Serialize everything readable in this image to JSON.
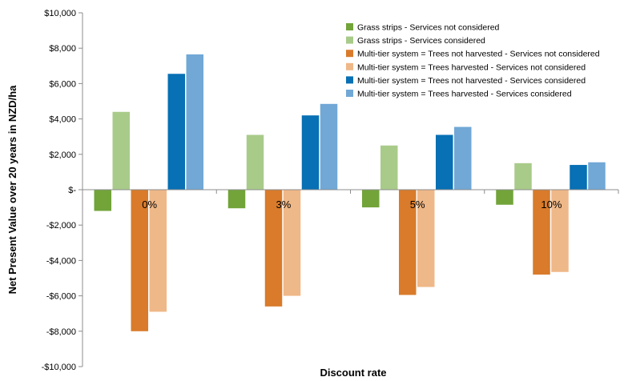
{
  "chart_data": {
    "type": "bar",
    "xlabel": "Discount rate",
    "ylabel": "Net Present Value over 20 years in NZD/ha",
    "ylim": [
      -10000,
      10000
    ],
    "yticks": [
      10000,
      8000,
      6000,
      4000,
      2000,
      0,
      -2000,
      -4000,
      -6000,
      -8000,
      -10000
    ],
    "ytick_labels": [
      "$10,000",
      "$8,000",
      "$6,000",
      "$4,000",
      "$2,000",
      "$-",
      "-$2,000",
      "-$4,000",
      "-$6,000",
      "-$8,000",
      "-$10,000"
    ],
    "categories": [
      "0%",
      "3%",
      "5%",
      "10%"
    ],
    "grid": false,
    "legend_position": "top-right",
    "series": [
      {
        "name": "Grass strips - Services not considered",
        "color": "#72a43a",
        "values": [
          -1200,
          -1050,
          -1000,
          -850
        ]
      },
      {
        "name": "Grass strips - Services considered",
        "color": "#a9cb8a",
        "values": [
          4400,
          3100,
          2500,
          1500
        ]
      },
      {
        "name": "Multi-tier system = Trees not harvested - Services not considered",
        "color": "#d97b2b",
        "values": [
          -8000,
          -6600,
          -5950,
          -4800
        ]
      },
      {
        "name": "Multi-tier system = Trees harvested - Services not considered",
        "color": "#efb888",
        "values": [
          -6900,
          -6000,
          -5500,
          -4650
        ]
      },
      {
        "name": "Multi-tier system = Trees not harvested - Services considered",
        "color": "#0870b4",
        "values": [
          6550,
          4200,
          3100,
          1400
        ]
      },
      {
        "name": "Multi-tier system = Trees harvested - Services considered",
        "color": "#71a8d6",
        "values": [
          7650,
          4850,
          3550,
          1550
        ]
      }
    ]
  }
}
